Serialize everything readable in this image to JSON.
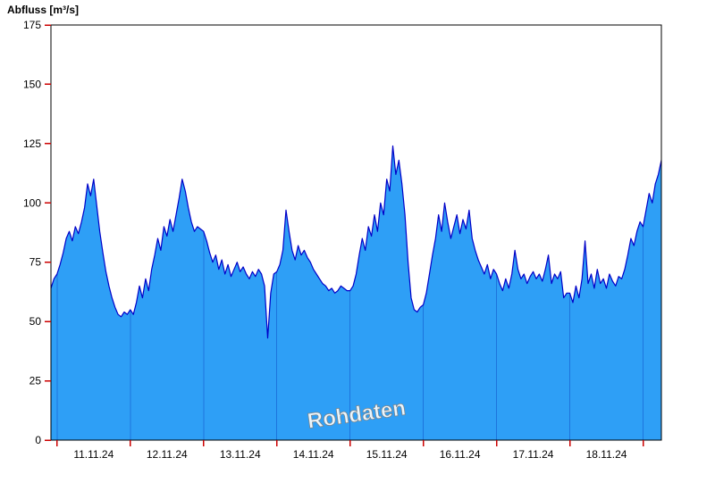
{
  "chart_data": {
    "type": "area",
    "title": "",
    "ylabel": "Abfluss [m³/s]",
    "xlabel": "",
    "watermark": "Rohdaten",
    "unit": "m³/s",
    "ylim": [
      0,
      175
    ],
    "xlim_hours": [
      -2,
      198
    ],
    "grid": "day-separator-lines-only",
    "y_ticks": [
      0,
      25,
      50,
      75,
      100,
      125,
      150,
      175
    ],
    "day_boundary_hours": [
      0,
      24,
      48,
      72,
      96,
      120,
      144,
      168,
      192
    ],
    "x_day_labels": [
      {
        "label": "11.11.24",
        "center_hour": 12
      },
      {
        "label": "12.11.24",
        "center_hour": 36
      },
      {
        "label": "13.11.24",
        "center_hour": 60
      },
      {
        "label": "14.11.24",
        "center_hour": 84
      },
      {
        "label": "15.11.24",
        "center_hour": 108
      },
      {
        "label": "16.11.24",
        "center_hour": 132
      },
      {
        "label": "17.11.24",
        "center_hour": 156
      },
      {
        "label": "18.11.24",
        "center_hour": 180
      }
    ],
    "x_start_hour": -2,
    "x_step_hours": 1,
    "values": [
      64,
      68,
      70,
      74,
      79,
      85,
      88,
      84,
      90,
      87,
      92,
      98,
      108,
      103,
      110,
      99,
      88,
      79,
      71,
      65,
      60,
      56,
      53,
      52,
      54,
      53,
      55,
      53,
      58,
      65,
      60,
      68,
      63,
      72,
      78,
      85,
      80,
      90,
      86,
      93,
      88,
      95,
      102,
      110,
      105,
      98,
      92,
      88,
      90,
      89,
      88,
      84,
      79,
      75,
      78,
      72,
      76,
      70,
      74,
      69,
      72,
      75,
      71,
      73,
      70,
      68,
      71,
      69,
      72,
      70,
      65,
      43,
      62,
      70,
      71,
      74,
      80,
      97,
      88,
      80,
      76,
      82,
      78,
      80,
      77,
      75,
      72,
      70,
      68,
      66,
      65,
      63,
      64,
      62,
      63,
      65,
      64,
      63,
      63,
      65,
      70,
      78,
      85,
      80,
      90,
      86,
      95,
      88,
      100,
      95,
      110,
      105,
      124,
      112,
      118,
      108,
      95,
      75,
      60,
      55,
      54,
      56,
      57,
      62,
      70,
      78,
      85,
      95,
      88,
      100,
      92,
      85,
      90,
      95,
      87,
      93,
      89,
      97,
      85,
      80,
      76,
      73,
      70,
      74,
      68,
      72,
      70,
      66,
      63,
      68,
      64,
      70,
      80,
      72,
      68,
      70,
      66,
      69,
      71,
      68,
      70,
      67,
      72,
      78,
      66,
      70,
      68,
      71,
      60,
      62,
      62,
      58,
      65,
      60,
      68,
      84,
      66,
      70,
      64,
      72,
      66,
      68,
      64,
      70,
      67,
      65,
      69,
      68,
      72,
      78,
      85,
      82,
      88,
      92,
      90,
      97,
      104,
      100,
      108,
      112,
      118
    ],
    "colors": {
      "fill": "#2E9FF6",
      "line": "#0000C8",
      "tick": "#CC0000",
      "frame": "#000000",
      "day_line": "#1050C8",
      "label": "#000000",
      "watermark_fill": "#FFFFFF",
      "watermark_outline": "#808080"
    }
  }
}
